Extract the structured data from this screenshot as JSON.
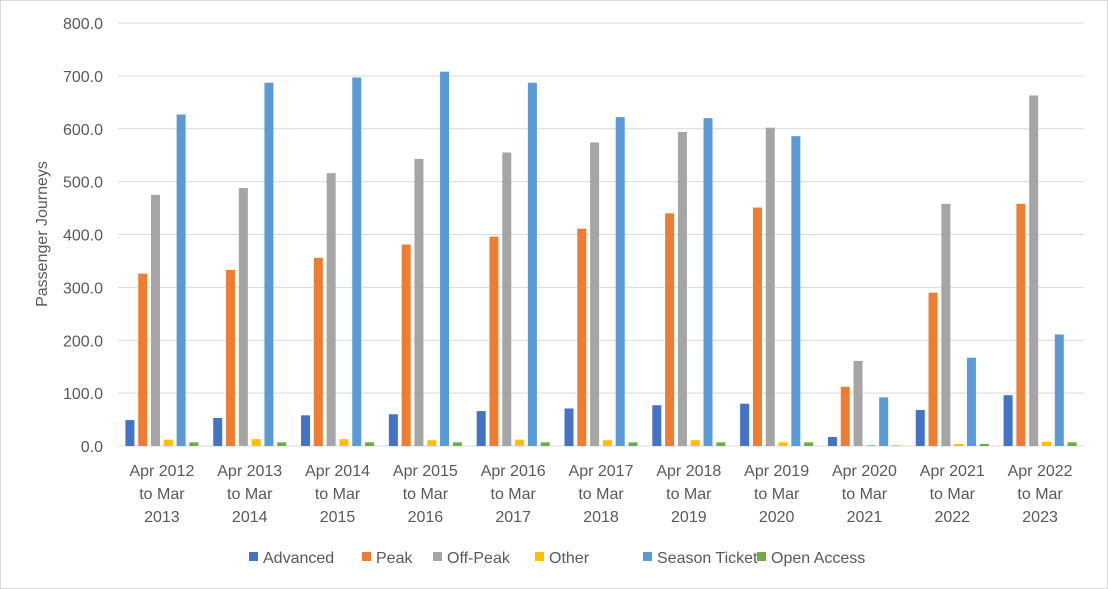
{
  "chart_data": {
    "type": "bar",
    "title": "",
    "xlabel": "",
    "ylabel": "Passenger Journeys",
    "ylim": [
      0,
      800
    ],
    "yticks": [
      "0.0",
      "100.0",
      "200.0",
      "300.0",
      "400.0",
      "500.0",
      "600.0",
      "700.0",
      "800.0"
    ],
    "grid": true,
    "legend_position": "bottom",
    "categories": [
      [
        "Apr 2012",
        "to Mar",
        "2013"
      ],
      [
        "Apr 2013",
        "to Mar",
        "2014"
      ],
      [
        "Apr 2014",
        "to Mar",
        "2015"
      ],
      [
        "Apr 2015",
        "to Mar",
        "2016"
      ],
      [
        "Apr 2016",
        "to Mar",
        "2017"
      ],
      [
        "Apr 2017",
        "to Mar",
        "2018"
      ],
      [
        "Apr 2018",
        "to Mar",
        "2019"
      ],
      [
        "Apr 2019",
        "to Mar",
        "2020"
      ],
      [
        "Apr 2020",
        "to Mar",
        "2021"
      ],
      [
        "Apr 2021",
        "to Mar",
        "2022"
      ],
      [
        "Apr 2022",
        "to Mar",
        "2023"
      ]
    ],
    "series": [
      {
        "name": "Advanced",
        "color": "#4472c4",
        "values": [
          49,
          53,
          58,
          60,
          66,
          71,
          77,
          80,
          17,
          68,
          96
        ]
      },
      {
        "name": "Peak",
        "color": "#ed7d31",
        "values": [
          326,
          333,
          356,
          381,
          396,
          411,
          440,
          451,
          112,
          290,
          458
        ]
      },
      {
        "name": "Off-Peak",
        "color": "#a5a5a5",
        "values": [
          475,
          488,
          516,
          543,
          555,
          574,
          594,
          602,
          161,
          458,
          663
        ]
      },
      {
        "name": "Other",
        "color": "#ffc000",
        "values": [
          12,
          13,
          13,
          11,
          12,
          11,
          11,
          7,
          2,
          4,
          8
        ]
      },
      {
        "name": "Season Ticket",
        "color": "#5b9bd5",
        "values": [
          627,
          687,
          697,
          708,
          687,
          622,
          620,
          586,
          92,
          167,
          211
        ]
      },
      {
        "name": "Open Access",
        "color": "#70ad47",
        "values": [
          7,
          7,
          7,
          7,
          7,
          7,
          7,
          7,
          1,
          4,
          7
        ]
      }
    ]
  }
}
